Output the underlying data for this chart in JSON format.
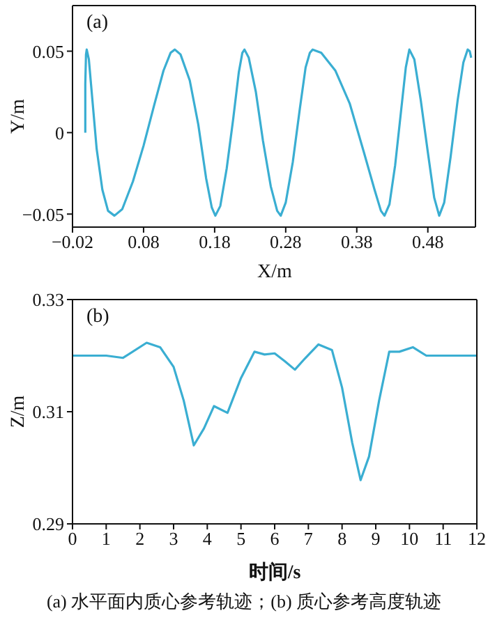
{
  "chart_data": [
    {
      "type": "line",
      "annotations": [
        "(a)"
      ],
      "xlabel": "X/m",
      "ylabel": "Y/m",
      "xlim": [
        -0.02,
        0.547
      ],
      "xticks": [
        -0.02,
        0.08,
        0.18,
        0.28,
        0.38,
        0.48
      ],
      "ylim": [
        -0.058,
        0.078
      ],
      "yticks": [
        -0.05,
        0,
        0.05
      ],
      "grid": false,
      "legend": false,
      "series": [
        {
          "color": "#3aaed2",
          "x": [
            -0.002,
            -0.002,
            -0.001,
            0.0,
            0.003,
            0.008,
            0.014,
            0.022,
            0.03,
            0.039,
            0.05,
            0.065,
            0.08,
            0.095,
            0.108,
            0.118,
            0.124,
            0.132,
            0.145,
            0.157,
            0.168,
            0.176,
            0.181,
            0.188,
            0.197,
            0.206,
            0.214,
            0.219,
            0.222,
            0.228,
            0.238,
            0.248,
            0.259,
            0.268,
            0.273,
            0.28,
            0.29,
            0.3,
            0.308,
            0.314,
            0.318,
            0.33,
            0.35,
            0.37,
            0.39,
            0.405,
            0.414,
            0.419,
            0.426,
            0.434,
            0.442,
            0.449,
            0.454,
            0.461,
            0.47,
            0.48,
            0.489,
            0.496,
            0.503,
            0.512,
            0.522,
            0.53,
            0.536,
            0.539,
            0.541
          ],
          "values": [
            0,
            0.03,
            0.048,
            0.051,
            0.045,
            0.02,
            -0.01,
            -0.035,
            -0.048,
            -0.051,
            -0.047,
            -0.03,
            -0.008,
            0.017,
            0.038,
            0.049,
            0.051,
            0.048,
            0.032,
            0.005,
            -0.028,
            -0.046,
            -0.051,
            -0.045,
            -0.022,
            0.008,
            0.037,
            0.049,
            0.051,
            0.046,
            0.025,
            -0.005,
            -0.033,
            -0.048,
            -0.051,
            -0.043,
            -0.018,
            0.015,
            0.04,
            0.049,
            0.051,
            0.049,
            0.038,
            0.018,
            -0.012,
            -0.035,
            -0.048,
            -0.051,
            -0.044,
            -0.02,
            0.012,
            0.04,
            0.051,
            0.045,
            0.02,
            -0.012,
            -0.04,
            -0.051,
            -0.043,
            -0.015,
            0.02,
            0.043,
            0.051,
            0.05,
            0.046
          ]
        }
      ]
    },
    {
      "type": "line",
      "annotations": [
        "(b)",
        "(a) 水平面内质心参考轨迹；(b) 质心参考高度轨迹"
      ],
      "xlabel": "时间/s",
      "ylabel": "Z/m",
      "xlim": [
        0,
        12
      ],
      "xticks": [
        0,
        1,
        2,
        3,
        4,
        5,
        6,
        7,
        8,
        9,
        10,
        11,
        12
      ],
      "ylim": [
        0.29,
        0.33
      ],
      "yticks": [
        0.29,
        0.31,
        0.33
      ],
      "grid": false,
      "legend": false,
      "series": [
        {
          "color": "#3aaed2",
          "x": [
            0,
            1,
            1.5,
            2.2,
            2.6,
            3.0,
            3.3,
            3.6,
            3.9,
            4.2,
            4.6,
            5.0,
            5.4,
            5.7,
            6.0,
            6.3,
            6.6,
            6.9,
            7.3,
            7.7,
            8.0,
            8.3,
            8.55,
            8.8,
            9.1,
            9.4,
            9.7,
            10.1,
            10.5,
            11,
            12
          ],
          "values": [
            0.32,
            0.32,
            0.3196,
            0.3223,
            0.3215,
            0.318,
            0.312,
            0.304,
            0.307,
            0.311,
            0.3098,
            0.316,
            0.3207,
            0.3202,
            0.3204,
            0.319,
            0.3175,
            0.3195,
            0.322,
            0.321,
            0.3143,
            0.3045,
            0.2978,
            0.302,
            0.312,
            0.3207,
            0.3207,
            0.3215,
            0.32,
            0.32,
            0.32
          ]
        }
      ]
    }
  ]
}
